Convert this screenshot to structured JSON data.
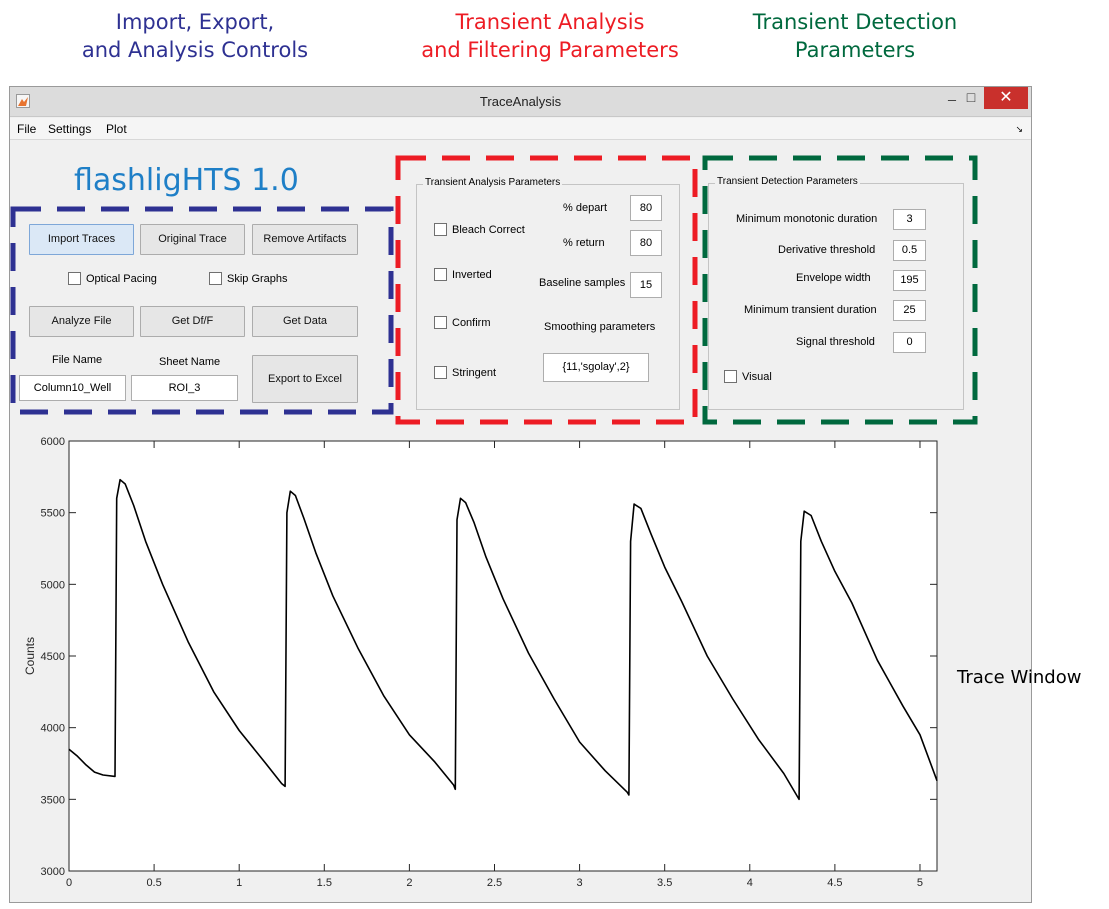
{
  "captions": {
    "import_line1": "Import, Export,",
    "import_line2": "and Analysis Controls",
    "transient_line1": "Transient Analysis",
    "transient_line2": "and Filtering Parameters",
    "detection_line1": "Transient Detection",
    "detection_line2": "Parameters",
    "trace_window": "Trace Window"
  },
  "colors": {
    "blue": "#2e3192",
    "red": "#ed1c24",
    "green": "#00693e",
    "brand": "#1e7fc7"
  },
  "window": {
    "title": "TraceAnalysis",
    "minimize": "_",
    "maximize": "□",
    "close": "✕"
  },
  "menu": {
    "items": [
      "File",
      "Settings",
      "Plot"
    ],
    "corner_icon": "↘"
  },
  "app": {
    "brand": "flashligHTS 1.0"
  },
  "controls": {
    "import_traces": "Import Traces",
    "original_trace": "Original Trace",
    "remove_artifacts": "Remove Artifacts",
    "optical_pacing": "Optical Pacing",
    "skip_graphs": "Skip Graphs",
    "analyze_file": "Analyze File",
    "get_dff": "Get Df/F",
    "get_data": "Get Data",
    "file_name_label": "File Name",
    "sheet_name_label": "Sheet Name",
    "file_name_value": "Column10_Well",
    "sheet_name_value": "ROI_3",
    "export_to_excel": "Export to Excel"
  },
  "analysis": {
    "title": "Transient Analysis Parameters",
    "bleach_correct": "Bleach Correct",
    "inverted": "Inverted",
    "confirm": "Confirm",
    "stringent": "Stringent",
    "pct_depart_label": "% depart",
    "pct_depart_value": "80",
    "pct_return_label": "% return",
    "pct_return_value": "80",
    "baseline_label": "Baseline samples",
    "baseline_value": "15",
    "smoothing_label": "Smoothing parameters",
    "smoothing_value": "{11,'sgolay',2}"
  },
  "detection": {
    "title": "Transient Detection Parameters",
    "min_monotonic_label": "Minimum monotonic duration",
    "min_monotonic_value": "3",
    "derivative_label": "Derivative threshold",
    "derivative_value": "0.5",
    "envelope_label": "Envelope width",
    "envelope_value": "195",
    "min_transient_label": "Minimum transient duration",
    "min_transient_value": "25",
    "signal_label": "Signal threshold",
    "signal_value": "0",
    "visual": "Visual"
  },
  "chart_data": {
    "type": "line",
    "title": "",
    "xlabel": "",
    "ylabel": "Counts",
    "xlim": [
      0,
      5.1
    ],
    "ylim": [
      3000,
      6000
    ],
    "xticks": [
      0,
      0.5,
      1,
      1.5,
      2,
      2.5,
      3,
      3.5,
      4,
      4.5,
      5
    ],
    "xtick_labels": [
      "0",
      "0.5",
      "1",
      "1.5",
      "2",
      "2.5",
      "3",
      "3.5",
      "4",
      "4.5",
      "5"
    ],
    "yticks": [
      3000,
      3500,
      4000,
      4500,
      5000,
      5500,
      6000
    ],
    "ytick_labels": [
      "3000",
      "3500",
      "4000",
      "4500",
      "5000",
      "5500",
      "6000"
    ],
    "grid": false,
    "series": [
      {
        "x": [
          0,
          0.05,
          0.1,
          0.15,
          0.2,
          0.27,
          0.28,
          0.3,
          0.33,
          0.38,
          0.45,
          0.55,
          0.7,
          0.85,
          1.0,
          1.15,
          1.25,
          1.27,
          1.28,
          1.3,
          1.33,
          1.38,
          1.45,
          1.55,
          1.7,
          1.85,
          2.0,
          2.15,
          2.26,
          2.27,
          2.28,
          2.3,
          2.33,
          2.38,
          2.45,
          2.55,
          2.7,
          2.85,
          3.0,
          3.15,
          3.28,
          3.29,
          3.3,
          3.32,
          3.36,
          3.42,
          3.5,
          3.6,
          3.75,
          3.9,
          4.05,
          4.2,
          4.28,
          4.29,
          4.3,
          4.32,
          4.36,
          4.42,
          4.5,
          4.6,
          4.75,
          4.9,
          5.0,
          5.1
        ],
        "y": [
          3850,
          3800,
          3740,
          3690,
          3670,
          3660,
          5600,
          5730,
          5700,
          5550,
          5300,
          5000,
          4600,
          4250,
          3980,
          3760,
          3610,
          3590,
          5500,
          5650,
          5620,
          5460,
          5220,
          4920,
          4550,
          4220,
          3950,
          3760,
          3600,
          3570,
          5450,
          5600,
          5570,
          5430,
          5190,
          4900,
          4520,
          4200,
          3900,
          3700,
          3550,
          3530,
          5300,
          5560,
          5530,
          5350,
          5120,
          4880,
          4500,
          4200,
          3920,
          3680,
          3520,
          3500,
          5300,
          5510,
          5480,
          5300,
          5090,
          4870,
          4470,
          4150,
          3950,
          3630
        ]
      }
    ]
  }
}
